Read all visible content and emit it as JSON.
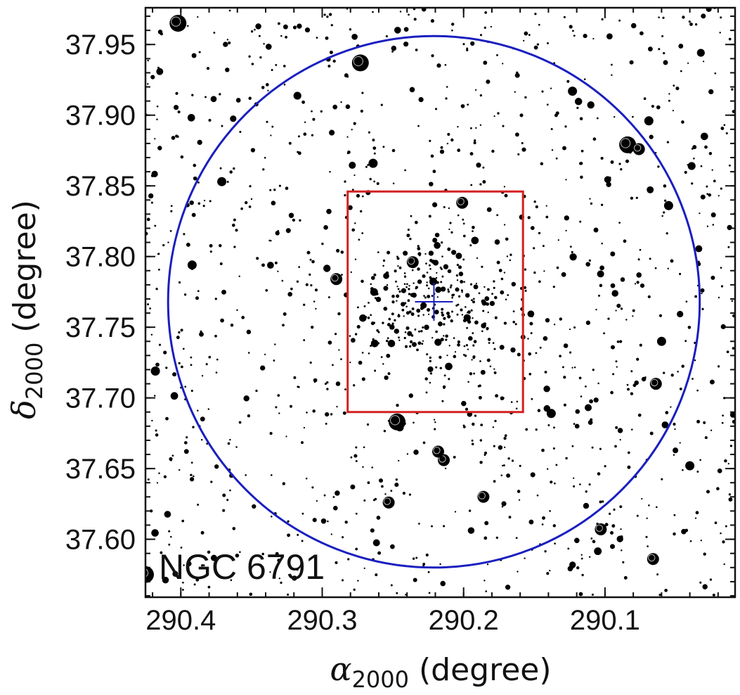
{
  "chart_data": {
    "type": "scatter",
    "title": "",
    "annotation": "NGC 6791",
    "xlabel": {
      "symbol": "α",
      "sub": "2000",
      "unit": " (degree)"
    },
    "ylabel": {
      "symbol": "δ",
      "sub": "2000",
      "unit": " (degree)"
    },
    "xlim": [
      290.425,
      290.008
    ],
    "ylim": [
      37.559,
      37.976
    ],
    "x_ticks": [
      290.4,
      290.3,
      290.2,
      290.1
    ],
    "x_tick_labels": [
      "290.4",
      "290.3",
      "290.2",
      "290.1"
    ],
    "y_ticks": [
      37.6,
      37.65,
      37.7,
      37.75,
      37.8,
      37.85,
      37.9,
      37.95
    ],
    "y_tick_labels": [
      "37.60",
      "37.65",
      "37.70",
      "37.75",
      "37.80",
      "37.85",
      "37.90",
      "37.95"
    ],
    "grid": false,
    "center": {
      "ra": 290.221,
      "dec": 37.768,
      "marker": "plus",
      "color": "#1a1fbf"
    },
    "circle": {
      "ra_center": 290.221,
      "dec_center": 37.768,
      "radius_deg": 0.188,
      "color": "#1a1fbf"
    },
    "box": {
      "ra_min": 290.158,
      "ra_max": 290.282,
      "dec_min": 37.69,
      "dec_max": 37.846,
      "color": "#d42020"
    },
    "bright_stars": [
      {
        "ra": 290.402,
        "dec": 37.965,
        "mag": 1
      },
      {
        "ra": 290.273,
        "dec": 37.937,
        "mag": 1
      },
      {
        "ra": 290.084,
        "dec": 37.879,
        "mag": 1
      },
      {
        "ra": 290.076,
        "dec": 37.876,
        "mag": 2
      },
      {
        "ra": 290.201,
        "dec": 37.838,
        "mag": 2
      },
      {
        "ra": 290.236,
        "dec": 37.796,
        "mag": 2
      },
      {
        "ra": 290.29,
        "dec": 37.784,
        "mag": 2
      },
      {
        "ra": 290.247,
        "dec": 37.683,
        "mag": 1
      },
      {
        "ra": 290.214,
        "dec": 37.656,
        "mag": 2
      },
      {
        "ra": 290.218,
        "dec": 37.662,
        "mag": 2
      },
      {
        "ra": 290.186,
        "dec": 37.63,
        "mag": 2
      },
      {
        "ra": 290.253,
        "dec": 37.626,
        "mag": 2
      },
      {
        "ra": 290.103,
        "dec": 37.607,
        "mag": 2
      },
      {
        "ra": 290.066,
        "dec": 37.586,
        "mag": 2
      },
      {
        "ra": 290.064,
        "dec": 37.71,
        "mag": 2
      },
      {
        "ra": 290.418,
        "dec": 37.719,
        "mag": 3
      },
      {
        "ra": 290.425,
        "dec": 37.575,
        "mag": 1
      },
      {
        "ra": 290.06,
        "dec": 37.74,
        "mag": 3
      },
      {
        "ra": 290.069,
        "dec": 37.896,
        "mag": 3
      },
      {
        "ra": 290.264,
        "dec": 37.866,
        "mag": 3
      },
      {
        "ra": 290.138,
        "dec": 37.689,
        "mag": 3
      },
      {
        "ra": 290.04,
        "dec": 37.652,
        "mag": 3
      },
      {
        "ra": 290.392,
        "dec": 37.794,
        "mag": 3
      },
      {
        "ra": 290.371,
        "dec": 37.853,
        "mag": 3
      },
      {
        "ra": 290.123,
        "dec": 37.917,
        "mag": 3
      },
      {
        "ra": 290.055,
        "dec": 37.836,
        "mag": 3
      }
    ],
    "field_stars": {
      "count": 1150,
      "core_count": 300,
      "note": "faint stars of NGC 6791 field"
    }
  }
}
